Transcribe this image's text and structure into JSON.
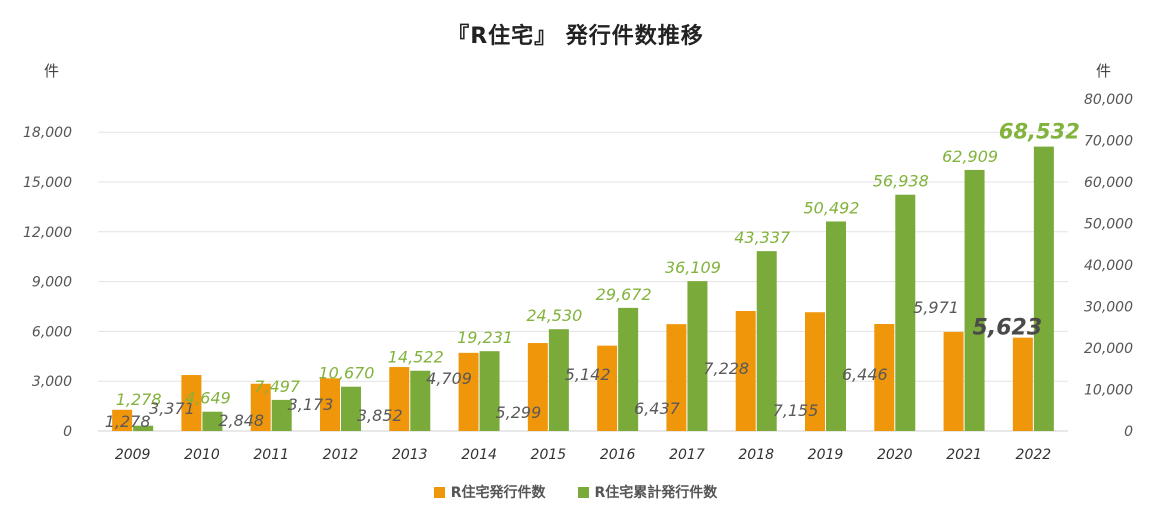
{
  "chart_data": {
    "type": "bar",
    "title": "『R住宅』 発行件数推移",
    "ylabel_left": "件",
    "ylabel_right": "件",
    "categories": [
      "2009",
      "2010",
      "2011",
      "2012",
      "2013",
      "2014",
      "2015",
      "2016",
      "2017",
      "2018",
      "2019",
      "2020",
      "2021",
      "2022"
    ],
    "series": [
      {
        "name": "R住宅発行件数",
        "axis": "left",
        "color": "#F0960A",
        "label_color": "#595959",
        "values": [
          1278,
          3371,
          2848,
          3173,
          3852,
          4709,
          5299,
          5142,
          6437,
          7228,
          7155,
          6446,
          5971,
          5623
        ],
        "labels": [
          "1,278",
          "3,371",
          "2,848",
          "3,173",
          "3,852",
          "4,709",
          "5,299",
          "5,142",
          "6,437",
          "7,228",
          "7,155",
          "6,446",
          "5,971",
          "5,623"
        ]
      },
      {
        "name": "R住宅累計発行件数",
        "axis": "right",
        "color": "#7AAB3A",
        "label_color": "#82B33C",
        "values": [
          1278,
          4649,
          7497,
          10670,
          14522,
          19231,
          24530,
          29672,
          36109,
          43337,
          50492,
          56938,
          62909,
          68532
        ],
        "labels": [
          "1,278",
          "4,649",
          "7,497",
          "10,670",
          "14,522",
          "19,231",
          "24,530",
          "29,672",
          "36,109",
          "43,337",
          "50,492",
          "56,938",
          "62,909",
          "68,532"
        ]
      }
    ],
    "ylim_left": [
      0,
      20000
    ],
    "ylim_right": [
      0,
      80000
    ],
    "left_ticks": [
      0,
      3000,
      6000,
      9000,
      12000,
      15000,
      18000
    ],
    "left_tick_labels": [
      "0",
      "3,000",
      "6,000",
      "9,000",
      "12,000",
      "15,000",
      "18,000"
    ],
    "right_ticks": [
      0,
      10000,
      20000,
      30000,
      40000,
      50000,
      60000,
      70000,
      80000
    ],
    "right_tick_labels": [
      "0",
      "10,000",
      "20,000",
      "30,000",
      "40,000",
      "50,000",
      "60,000",
      "70,000",
      "80,000"
    ],
    "legend_position": "bottom",
    "grid": true
  }
}
